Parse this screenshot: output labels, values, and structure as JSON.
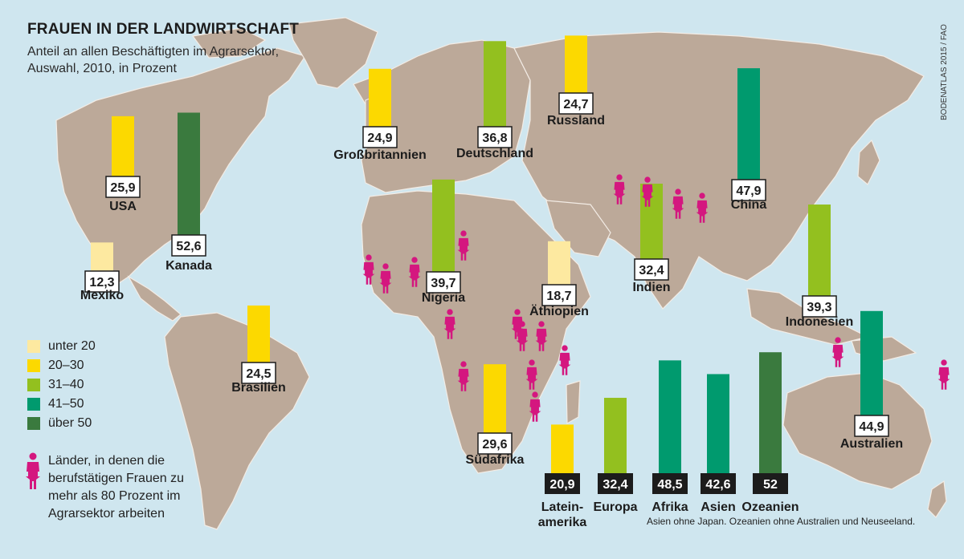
{
  "header": {
    "title": "FRAUEN IN DER LANDWIRTSCHAFT",
    "subtitle": "Anteil an allen Beschäftigten im Agrarsektor, Auswahl, 2010, in Prozent",
    "source": "BODENATLAS 2015 / FAO"
  },
  "legend": {
    "items": [
      {
        "label": "unter 20",
        "color": "#fde9a0"
      },
      {
        "label": "20–30",
        "color": "#fcd900"
      },
      {
        "label": "31–40",
        "color": "#93c01f"
      },
      {
        "label": "41–50",
        "color": "#009a6e"
      },
      {
        "label": "über 50",
        "color": "#3a7a3e"
      }
    ],
    "note": "Länder, in denen die berufstätigen Frauen zu mehr als 80 Prozent im Agrarsektor arbeiten",
    "note_icon": "woman-icon",
    "note_icon_color": "#d4177f"
  },
  "footnote": "Asien ohne Japan. Ozeanien ohne Australien und Neuseeland.",
  "colors": {
    "ocean": "#cfe6ef",
    "land": "#bca999",
    "border": "#f3ece5"
  },
  "chart_data": [
    {
      "type": "bar",
      "group": "countries",
      "categories": [
        "USA",
        "Kanada",
        "Mexiko",
        "Brasilien",
        "Großbritannien",
        "Deutschland",
        "Russland",
        "Nigeria",
        "Äthiopien",
        "Südafrika",
        "Indien",
        "China",
        "Indonesien",
        "Australien"
      ],
      "value_labels": [
        "25,9",
        "52,6",
        "12,3",
        "24,5",
        "24,9",
        "36,8",
        "24,7",
        "39,7",
        "18,7",
        "29,6",
        "32,4",
        "47,9",
        "39,3",
        "44,9"
      ],
      "values": [
        25.9,
        52.6,
        12.3,
        24.5,
        24.9,
        36.8,
        24.7,
        39.7,
        18.7,
        29.6,
        32.4,
        47.9,
        39.3,
        44.9
      ]
    },
    {
      "type": "bar",
      "group": "regions",
      "categories": [
        "Latein-amerika",
        "Europa",
        "Afrika",
        "Asien",
        "Ozeanien"
      ],
      "value_labels": [
        "20,9",
        "32,4",
        "48,5",
        "42,6",
        "52"
      ],
      "values": [
        20.9,
        32.4,
        48.5,
        42.6,
        52
      ]
    }
  ]
}
